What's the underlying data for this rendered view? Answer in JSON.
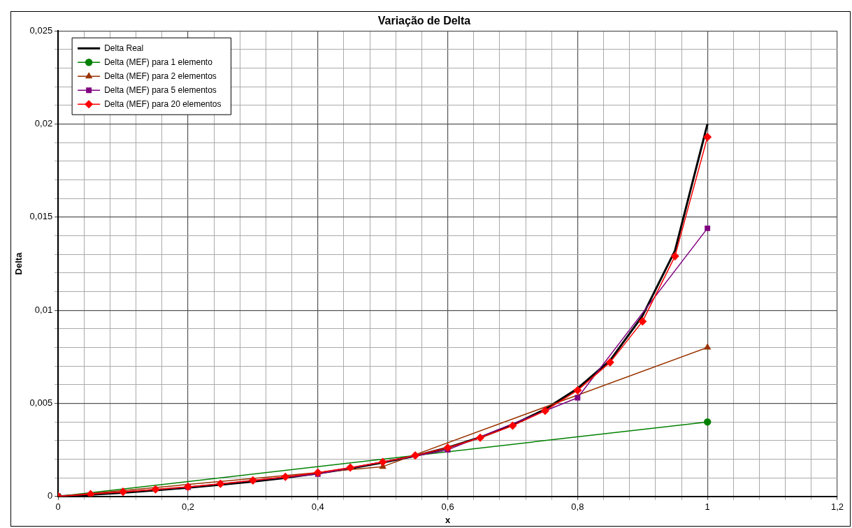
{
  "chart_data": {
    "type": "line",
    "title": "Variação de Delta",
    "xlabel": "x",
    "ylabel": "Delta",
    "xlim": [
      0,
      1.2
    ],
    "ylim": [
      0,
      0.025
    ],
    "xticks": [
      {
        "value": 0,
        "label": "0"
      },
      {
        "value": 0.04,
        "label": null
      },
      {
        "value": 0.08,
        "label": null
      },
      {
        "value": 0.12,
        "label": null
      },
      {
        "value": 0.16,
        "label": null
      },
      {
        "value": 0.2,
        "label": "0,2"
      },
      {
        "value": 0.24,
        "label": null
      },
      {
        "value": 0.28,
        "label": null
      },
      {
        "value": 0.32,
        "label": null
      },
      {
        "value": 0.36,
        "label": null
      },
      {
        "value": 0.4,
        "label": "0,4"
      },
      {
        "value": 0.44,
        "label": null
      },
      {
        "value": 0.48,
        "label": null
      },
      {
        "value": 0.52,
        "label": null
      },
      {
        "value": 0.56,
        "label": null
      },
      {
        "value": 0.6,
        "label": "0,6"
      },
      {
        "value": 0.64,
        "label": null
      },
      {
        "value": 0.68,
        "label": null
      },
      {
        "value": 0.72,
        "label": null
      },
      {
        "value": 0.76,
        "label": null
      },
      {
        "value": 0.8,
        "label": "0,8"
      },
      {
        "value": 0.84,
        "label": null
      },
      {
        "value": 0.88,
        "label": null
      },
      {
        "value": 0.92,
        "label": null
      },
      {
        "value": 0.96,
        "label": null
      },
      {
        "value": 1,
        "label": "1"
      },
      {
        "value": 1.04,
        "label": null
      },
      {
        "value": 1.08,
        "label": null
      },
      {
        "value": 1.12,
        "label": null
      },
      {
        "value": 1.16,
        "label": null
      },
      {
        "value": 1.2,
        "label": "1,2"
      }
    ],
    "yticks": [
      {
        "value": 0,
        "label": "0"
      },
      {
        "value": 0.001,
        "label": null
      },
      {
        "value": 0.002,
        "label": null
      },
      {
        "value": 0.003,
        "label": null
      },
      {
        "value": 0.004,
        "label": null
      },
      {
        "value": 0.005,
        "label": "0,005"
      },
      {
        "value": 0.006,
        "label": null
      },
      {
        "value": 0.007,
        "label": null
      },
      {
        "value": 0.008,
        "label": null
      },
      {
        "value": 0.009,
        "label": null
      },
      {
        "value": 0.01,
        "label": "0,01"
      },
      {
        "value": 0.011,
        "label": null
      },
      {
        "value": 0.012,
        "label": null
      },
      {
        "value": 0.013,
        "label": null
      },
      {
        "value": 0.014,
        "label": null
      },
      {
        "value": 0.015,
        "label": "0,015"
      },
      {
        "value": 0.016,
        "label": null
      },
      {
        "value": 0.017,
        "label": null
      },
      {
        "value": 0.018,
        "label": null
      },
      {
        "value": 0.019,
        "label": null
      },
      {
        "value": 0.02,
        "label": "0,02"
      },
      {
        "value": 0.021,
        "label": null
      },
      {
        "value": 0.022,
        "label": null
      },
      {
        "value": 0.023,
        "label": null
      },
      {
        "value": 0.024,
        "label": null
      },
      {
        "value": 0.025,
        "label": "0,025"
      }
    ],
    "grid": true,
    "legend": "top left",
    "series": [
      {
        "name": "Delta Real",
        "color": "#000000",
        "marker": "none",
        "x": [
          0,
          0.05,
          0.1,
          0.15,
          0.2,
          0.25,
          0.3,
          0.35,
          0.4,
          0.45,
          0.5,
          0.55,
          0.6,
          0.65,
          0.7,
          0.75,
          0.8,
          0.85,
          0.9,
          0.95,
          1
        ],
        "values": [
          0,
          0.0001,
          0.0002,
          0.00033,
          0.00047,
          0.00063,
          0.0008,
          0.001,
          0.00124,
          0.0015,
          0.00182,
          0.00218,
          0.00262,
          0.00317,
          0.00384,
          0.00468,
          0.0058,
          0.0073,
          0.0097,
          0.0132,
          0.02
        ]
      },
      {
        "name": "Delta (MEF) para 1 elemento",
        "color": "#008000",
        "marker": "circle",
        "x": [
          0,
          1
        ],
        "values": [
          0,
          0.004
        ]
      },
      {
        "name": "Delta (MEF) para 2 elementos",
        "color": "#993300",
        "marker": "triangle",
        "x": [
          0,
          0.5,
          1
        ],
        "values": [
          0,
          0.0016,
          0.008
        ]
      },
      {
        "name": "Delta (MEF) para 5 elementos",
        "color": "#800080",
        "marker": "square",
        "x": [
          0,
          0.2,
          0.4,
          0.6,
          0.8,
          1
        ],
        "values": [
          0,
          0.0005,
          0.0012,
          0.0025,
          0.0053,
          0.0144
        ]
      },
      {
        "name": "Delta (MEF) para 20 elementos",
        "color": "#ff0000",
        "marker": "diamond",
        "x": [
          0,
          0.05,
          0.1,
          0.15,
          0.2,
          0.25,
          0.3,
          0.35,
          0.4,
          0.45,
          0.5,
          0.55,
          0.6,
          0.65,
          0.7,
          0.75,
          0.8,
          0.85,
          0.9,
          0.95,
          1
        ],
        "values": [
          0,
          0.00012,
          0.00025,
          0.00038,
          0.00052,
          0.00068,
          0.00086,
          0.00105,
          0.00128,
          0.00155,
          0.00185,
          0.0022,
          0.00262,
          0.00315,
          0.0038,
          0.0046,
          0.0057,
          0.0072,
          0.0094,
          0.0129,
          0.0193
        ]
      }
    ]
  }
}
